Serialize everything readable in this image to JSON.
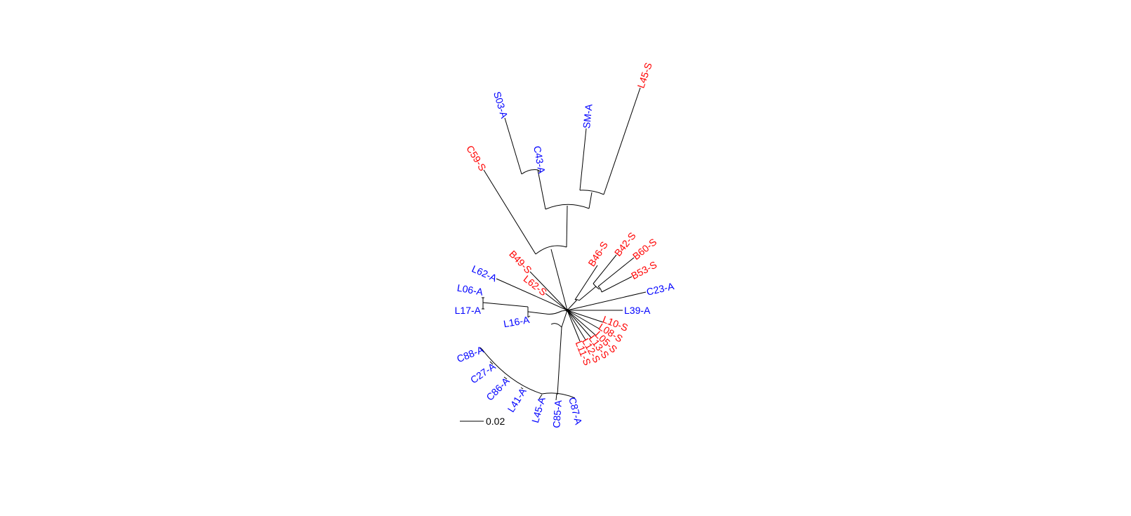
{
  "colors": {
    "S": "#ff0000",
    "A": "#0000ff",
    "branch": "#000000"
  },
  "scale_bar": {
    "label": "0.02"
  },
  "tips": [
    {
      "id": "s03a",
      "label": "S03-A",
      "group": "A"
    },
    {
      "id": "c43a",
      "label": "C43-A",
      "group": "A"
    },
    {
      "id": "sma",
      "label": "SM-A",
      "group": "A"
    },
    {
      "id": "l45s",
      "label": "L45-S",
      "group": "S"
    },
    {
      "id": "c59s",
      "label": "C59-S",
      "group": "S"
    },
    {
      "id": "b49s",
      "label": "B49-S",
      "group": "S"
    },
    {
      "id": "l62a",
      "label": "L62-A",
      "group": "A"
    },
    {
      "id": "l62s",
      "label": "L62-S",
      "group": "S"
    },
    {
      "id": "b46s",
      "label": "B46-S",
      "group": "S"
    },
    {
      "id": "b42s",
      "label": "B42-S",
      "group": "S"
    },
    {
      "id": "b60s",
      "label": "B60-S",
      "group": "S"
    },
    {
      "id": "b53s",
      "label": "B53-S",
      "group": "S"
    },
    {
      "id": "c23a",
      "label": "C23-A",
      "group": "A"
    },
    {
      "id": "l39a",
      "label": "L39-A",
      "group": "A"
    },
    {
      "id": "l10s",
      "label": "L10-S",
      "group": "S"
    },
    {
      "id": "l08s",
      "label": "L08-S",
      "group": "S"
    },
    {
      "id": "l05s",
      "label": "L05-S",
      "group": "S"
    },
    {
      "id": "l13s",
      "label": "L13-S",
      "group": "S"
    },
    {
      "id": "l12s",
      "label": "L12-S",
      "group": "S"
    },
    {
      "id": "l11s",
      "label": "L11-S",
      "group": "S"
    },
    {
      "id": "l06a",
      "label": "L06-A",
      "group": "A"
    },
    {
      "id": "l17a",
      "label": "L17-A",
      "group": "A"
    },
    {
      "id": "l16a",
      "label": "L16-A",
      "group": "A"
    },
    {
      "id": "c88a",
      "label": "C88-A",
      "group": "A"
    },
    {
      "id": "c27a",
      "label": "C27-A",
      "group": "A"
    },
    {
      "id": "c86a",
      "label": "C86-A",
      "group": "A"
    },
    {
      "id": "l41a",
      "label": "L41-A",
      "group": "A"
    },
    {
      "id": "l45a",
      "label": "L45-A",
      "group": "A"
    },
    {
      "id": "c85a",
      "label": "C85-A",
      "group": "A"
    },
    {
      "id": "c87a",
      "label": "C87-A",
      "group": "A"
    }
  ]
}
